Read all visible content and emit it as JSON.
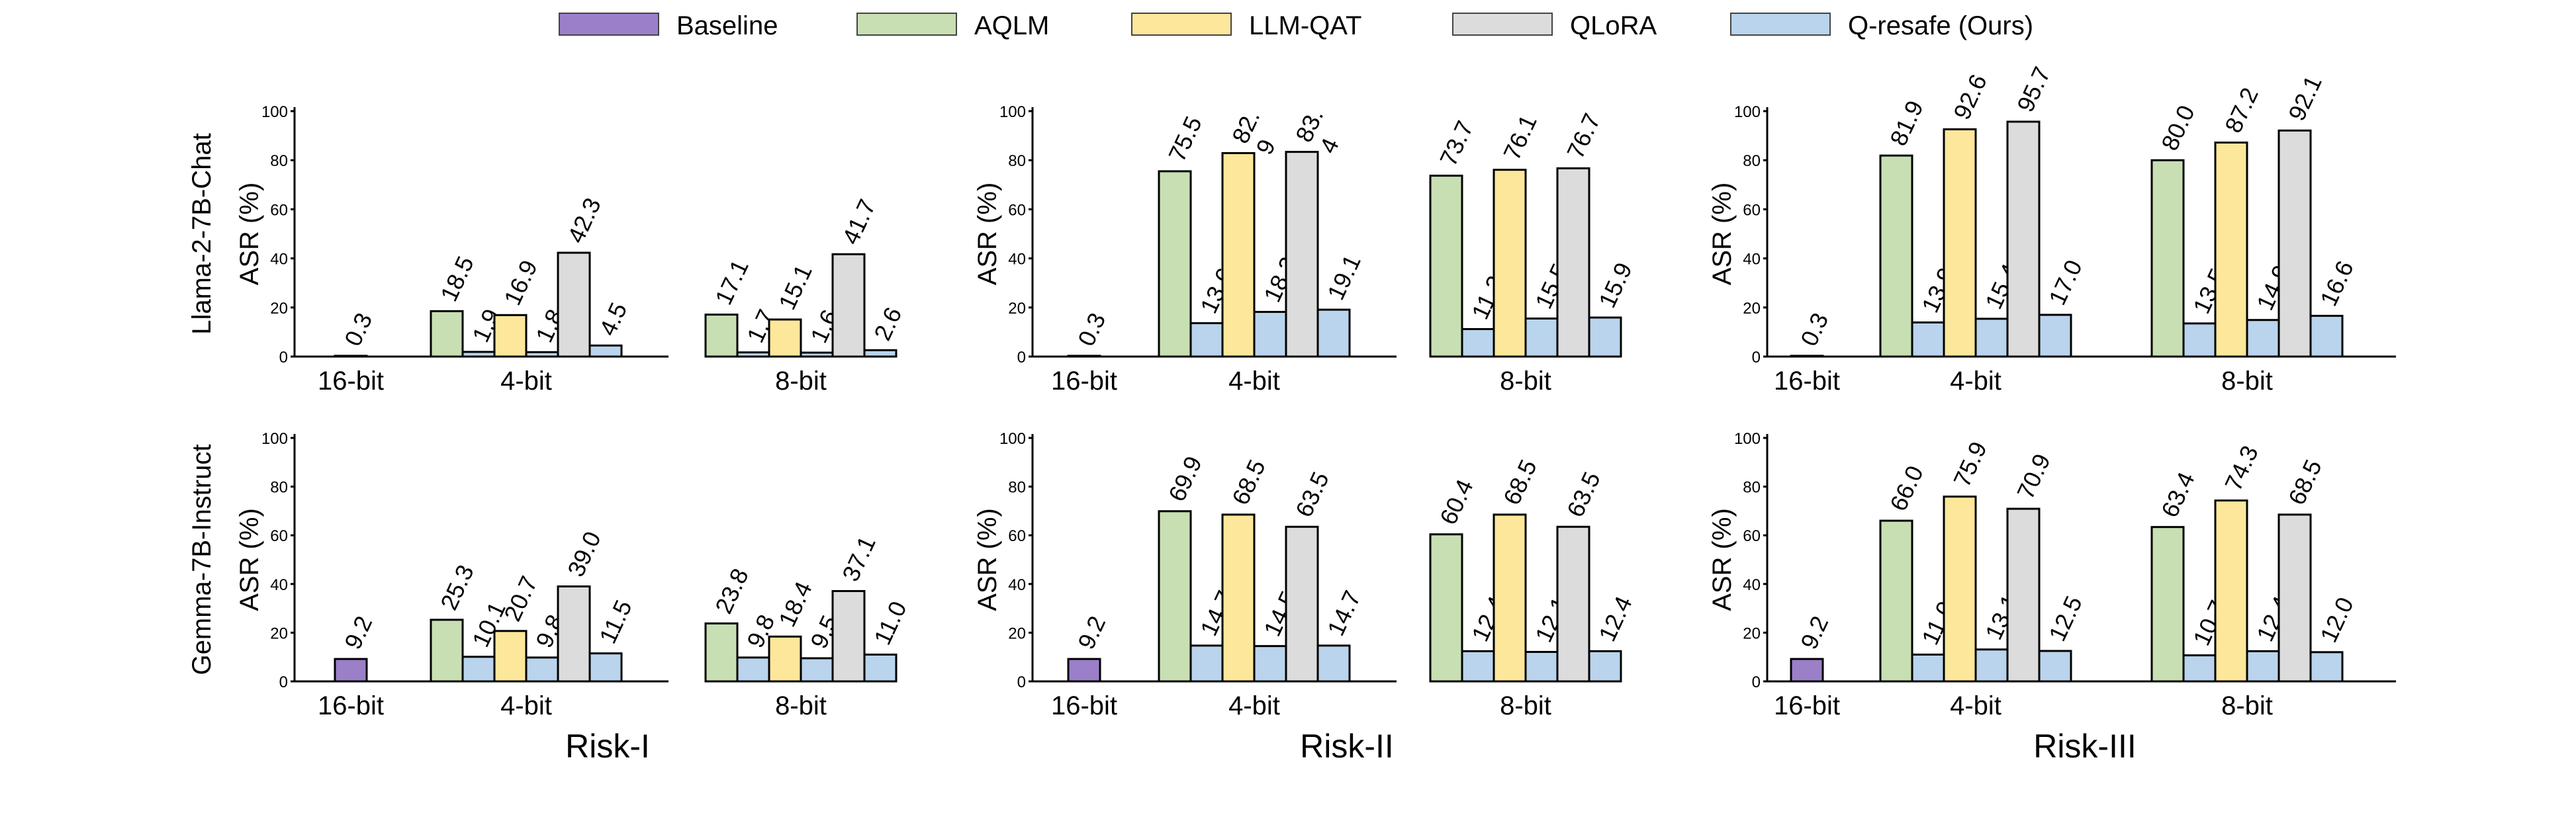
{
  "chart_data": {
    "type": "bar",
    "legend": [
      {
        "name": "Baseline",
        "color": "#9b7fc9"
      },
      {
        "name": "AQLM",
        "color": "#c7dfb3"
      },
      {
        "name": "LLM-QAT",
        "color": "#fde79b"
      },
      {
        "name": "QLoRA",
        "color": "#dcdcdc"
      },
      {
        "name": "Q-resafe (Ours)",
        "color": "#b9d4ec"
      }
    ],
    "legend_position": "top-center",
    "ylabel": "ASR (%)",
    "ylim": [
      0,
      100
    ],
    "yticks": [
      0,
      20,
      40,
      60,
      80,
      100
    ],
    "column_titles": [
      "Risk-I",
      "Risk-II",
      "Risk-III"
    ],
    "row_labels": [
      "Llama-2-7B-Chat",
      "Gemma-7B-Instruct"
    ],
    "groups": [
      "16-bit",
      "4-bit",
      "8-bit"
    ],
    "panels": [
      {
        "row": 0,
        "col": 0,
        "series": [
          {
            "group": "16-bit",
            "name": "Baseline",
            "value": 0.3,
            "label": "0.3"
          },
          {
            "group": "4-bit",
            "name": "AQLM",
            "value": 18.5,
            "label": "18.5"
          },
          {
            "group": "4-bit",
            "name": "Q-resafe (Ours)",
            "value": 1.9,
            "label": "1.9"
          },
          {
            "group": "4-bit",
            "name": "LLM-QAT",
            "value": 16.9,
            "label": "16.9"
          },
          {
            "group": "4-bit",
            "name": "Q-resafe (Ours)",
            "value": 1.8,
            "label": "1.8"
          },
          {
            "group": "4-bit",
            "name": "QLoRA",
            "value": 42.3,
            "label": "42.3"
          },
          {
            "group": "4-bit",
            "name": "Q-resafe (Ours)",
            "value": 4.5,
            "label": "4.5"
          },
          {
            "group": "8-bit",
            "name": "AQLM",
            "value": 17.1,
            "label": "17.1"
          },
          {
            "group": "8-bit",
            "name": "Q-resafe (Ours)",
            "value": 1.7,
            "label": "1.7"
          },
          {
            "group": "8-bit",
            "name": "LLM-QAT",
            "value": 15.1,
            "label": "15.1"
          },
          {
            "group": "8-bit",
            "name": "Q-resafe (Ours)",
            "value": 1.6,
            "label": "1.6"
          },
          {
            "group": "8-bit",
            "name": "QLoRA",
            "value": 41.7,
            "label": "41.7"
          },
          {
            "group": "8-bit",
            "name": "Q-resafe (Ours)",
            "value": 2.6,
            "label": "2.6"
          }
        ]
      },
      {
        "row": 0,
        "col": 1,
        "series": [
          {
            "group": "16-bit",
            "name": "Baseline",
            "value": 0.3,
            "label": "0.3"
          },
          {
            "group": "4-bit",
            "name": "AQLM",
            "value": 75.5,
            "label": "75.5"
          },
          {
            "group": "4-bit",
            "name": "Q-resafe (Ours)",
            "value": 13.6,
            "label": "13.6"
          },
          {
            "group": "4-bit",
            "name": "LLM-QAT",
            "value": 82.9,
            "label": "82.\n9"
          },
          {
            "group": "4-bit",
            "name": "Q-resafe (Ours)",
            "value": 18.2,
            "label": "18.2"
          },
          {
            "group": "4-bit",
            "name": "QLoRA",
            "value": 83.4,
            "label": "83.\n4"
          },
          {
            "group": "4-bit",
            "name": "Q-resafe (Ours)",
            "value": 19.1,
            "label": "19.1"
          },
          {
            "group": "8-bit",
            "name": "AQLM",
            "value": 73.7,
            "label": "73.7"
          },
          {
            "group": "8-bit",
            "name": "Q-resafe (Ours)",
            "value": 11.2,
            "label": "11.2"
          },
          {
            "group": "8-bit",
            "name": "LLM-QAT",
            "value": 76.1,
            "label": "76.1"
          },
          {
            "group": "8-bit",
            "name": "Q-resafe (Ours)",
            "value": 15.5,
            "label": "15.5"
          },
          {
            "group": "8-bit",
            "name": "QLoRA",
            "value": 76.7,
            "label": "76.7"
          },
          {
            "group": "8-bit",
            "name": "Q-resafe (Ours)",
            "value": 15.9,
            "label": "15.9"
          }
        ]
      },
      {
        "row": 0,
        "col": 2,
        "series": [
          {
            "group": "16-bit",
            "name": "Baseline",
            "value": 0.3,
            "label": "0.3"
          },
          {
            "group": "4-bit",
            "name": "AQLM",
            "value": 81.9,
            "label": "81.9"
          },
          {
            "group": "4-bit",
            "name": "Q-resafe (Ours)",
            "value": 13.9,
            "label": "13.9"
          },
          {
            "group": "4-bit",
            "name": "LLM-QAT",
            "value": 92.6,
            "label": "92.6"
          },
          {
            "group": "4-bit",
            "name": "Q-resafe (Ours)",
            "value": 15.4,
            "label": "15.4"
          },
          {
            "group": "4-bit",
            "name": "QLoRA",
            "value": 95.7,
            "label": "95.7"
          },
          {
            "group": "4-bit",
            "name": "Q-resafe (Ours)",
            "value": 17.0,
            "label": "17.0"
          },
          {
            "group": "8-bit",
            "name": "AQLM",
            "value": 80.0,
            "label": "80.0"
          },
          {
            "group": "8-bit",
            "name": "Q-resafe (Ours)",
            "value": 13.5,
            "label": "13.5"
          },
          {
            "group": "8-bit",
            "name": "LLM-QAT",
            "value": 87.2,
            "label": "87.2"
          },
          {
            "group": "8-bit",
            "name": "Q-resafe (Ours)",
            "value": 14.9,
            "label": "14.9"
          },
          {
            "group": "8-bit",
            "name": "QLoRA",
            "value": 92.1,
            "label": "92.1"
          },
          {
            "group": "8-bit",
            "name": "Q-resafe (Ours)",
            "value": 16.6,
            "label": "16.6"
          }
        ]
      },
      {
        "row": 1,
        "col": 0,
        "series": [
          {
            "group": "16-bit",
            "name": "Baseline",
            "value": 9.2,
            "label": "9.2"
          },
          {
            "group": "4-bit",
            "name": "AQLM",
            "value": 25.3,
            "label": "25.3"
          },
          {
            "group": "4-bit",
            "name": "Q-resafe (Ours)",
            "value": 10.1,
            "label": "10.1"
          },
          {
            "group": "4-bit",
            "name": "LLM-QAT",
            "value": 20.7,
            "label": "20.7"
          },
          {
            "group": "4-bit",
            "name": "Q-resafe (Ours)",
            "value": 9.8,
            "label": "9.8"
          },
          {
            "group": "4-bit",
            "name": "QLoRA",
            "value": 39.0,
            "label": "39.0"
          },
          {
            "group": "4-bit",
            "name": "Q-resafe (Ours)",
            "value": 11.5,
            "label": "11.5"
          },
          {
            "group": "8-bit",
            "name": "AQLM",
            "value": 23.8,
            "label": "23.8"
          },
          {
            "group": "8-bit",
            "name": "Q-resafe (Ours)",
            "value": 9.8,
            "label": "9.8"
          },
          {
            "group": "8-bit",
            "name": "LLM-QAT",
            "value": 18.4,
            "label": "18.4"
          },
          {
            "group": "8-bit",
            "name": "Q-resafe (Ours)",
            "value": 9.5,
            "label": "9.5"
          },
          {
            "group": "8-bit",
            "name": "QLoRA",
            "value": 37.1,
            "label": "37.1"
          },
          {
            "group": "8-bit",
            "name": "Q-resafe (Ours)",
            "value": 11.0,
            "label": "11.0"
          }
        ]
      },
      {
        "row": 1,
        "col": 1,
        "series": [
          {
            "group": "16-bit",
            "name": "Baseline",
            "value": 9.2,
            "label": "9.2"
          },
          {
            "group": "4-bit",
            "name": "AQLM",
            "value": 69.9,
            "label": "69.9"
          },
          {
            "group": "4-bit",
            "name": "Q-resafe (Ours)",
            "value": 14.7,
            "label": "14.7"
          },
          {
            "group": "4-bit",
            "name": "LLM-QAT",
            "value": 68.5,
            "label": "68.5"
          },
          {
            "group": "4-bit",
            "name": "Q-resafe (Ours)",
            "value": 14.5,
            "label": "14.5"
          },
          {
            "group": "4-bit",
            "name": "QLoRA",
            "value": 63.5,
            "label": "63.5"
          },
          {
            "group": "4-bit",
            "name": "Q-resafe (Ours)",
            "value": 14.7,
            "label": "14.7"
          },
          {
            "group": "8-bit",
            "name": "AQLM",
            "value": 60.4,
            "label": "60.4"
          },
          {
            "group": "8-bit",
            "name": "Q-resafe (Ours)",
            "value": 12.4,
            "label": "12.4"
          },
          {
            "group": "8-bit",
            "name": "LLM-QAT",
            "value": 68.5,
            "label": "68.5"
          },
          {
            "group": "8-bit",
            "name": "Q-resafe (Ours)",
            "value": 12.1,
            "label": "12.1"
          },
          {
            "group": "8-bit",
            "name": "QLoRA",
            "value": 63.5,
            "label": "63.5"
          },
          {
            "group": "8-bit",
            "name": "Q-resafe (Ours)",
            "value": 12.4,
            "label": "12.4"
          }
        ]
      },
      {
        "row": 1,
        "col": 2,
        "series": [
          {
            "group": "16-bit",
            "name": "Baseline",
            "value": 9.2,
            "label": "9.2"
          },
          {
            "group": "4-bit",
            "name": "AQLM",
            "value": 66.0,
            "label": "66.0"
          },
          {
            "group": "4-bit",
            "name": "Q-resafe (Ours)",
            "value": 11.0,
            "label": "11.0"
          },
          {
            "group": "4-bit",
            "name": "LLM-QAT",
            "value": 75.9,
            "label": "75.9"
          },
          {
            "group": "4-bit",
            "name": "Q-resafe (Ours)",
            "value": 13.1,
            "label": "13.1"
          },
          {
            "group": "4-bit",
            "name": "QLoRA",
            "value": 70.9,
            "label": "70.9"
          },
          {
            "group": "4-bit",
            "name": "Q-resafe (Ours)",
            "value": 12.5,
            "label": "12.5"
          },
          {
            "group": "8-bit",
            "name": "AQLM",
            "value": 63.4,
            "label": "63.4"
          },
          {
            "group": "8-bit",
            "name": "Q-resafe (Ours)",
            "value": 10.7,
            "label": "10.7"
          },
          {
            "group": "8-bit",
            "name": "LLM-QAT",
            "value": 74.3,
            "label": "74.3"
          },
          {
            "group": "8-bit",
            "name": "Q-resafe (Ours)",
            "value": 12.4,
            "label": "12.4"
          },
          {
            "group": "8-bit",
            "name": "QLoRA",
            "value": 68.5,
            "label": "68.5"
          },
          {
            "group": "8-bit",
            "name": "Q-resafe (Ours)",
            "value": 12.0,
            "label": "12.0"
          }
        ]
      }
    ]
  }
}
